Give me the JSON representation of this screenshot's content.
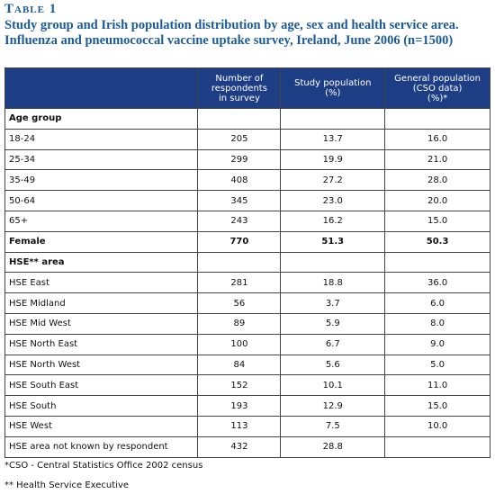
{
  "header": {
    "label": "Table 1",
    "title": "Study group and Irish population distribution by age, sex and health service area. Influenza and pneumococcal vaccine uptake survey, Ireland, June 2006 (n=1500)"
  },
  "table": {
    "columns": [
      "",
      "Number of\nrespondents\nin survey",
      "Study population\n(%)",
      "General population\n(CSO data)\n(%)*"
    ],
    "rows": [
      {
        "heading": true,
        "cells": [
          "Age group"
        ]
      },
      {
        "cells": [
          "18-24",
          "205",
          "13.7",
          "16.0"
        ]
      },
      {
        "cells": [
          "25-34",
          "299",
          "19.9",
          "21.0"
        ]
      },
      {
        "cells": [
          "35-49",
          "408",
          "27.2",
          "28.0"
        ]
      },
      {
        "cells": [
          "50-64",
          "345",
          "23.0",
          "20.0"
        ]
      },
      {
        "cells": [
          "65+",
          "243",
          "16.2",
          "15.0"
        ]
      },
      {
        "heading": true,
        "cells": [
          "Female",
          "770",
          "51.3",
          "50.3"
        ]
      },
      {
        "heading": true,
        "cells": [
          "HSE** area"
        ]
      },
      {
        "cells": [
          "HSE East",
          "281",
          "18.8",
          "36.0"
        ]
      },
      {
        "cells": [
          "HSE Midland",
          "56",
          "3.7",
          "6.0"
        ]
      },
      {
        "cells": [
          "HSE Mid West",
          "89",
          "5.9",
          "8.0"
        ]
      },
      {
        "cells": [
          "HSE North East",
          "100",
          "6.7",
          "9.0"
        ]
      },
      {
        "cells": [
          "HSE North West",
          "84",
          "5.6",
          "5.0"
        ]
      },
      {
        "cells": [
          "HSE South East",
          "152",
          "10.1",
          "11.0"
        ]
      },
      {
        "cells": [
          "HSE South",
          "193",
          "12.9",
          "15.0"
        ]
      },
      {
        "cells": [
          "HSE West",
          "113",
          "7.5",
          "10.0"
        ]
      },
      {
        "cells": [
          "HSE area not known by respondent",
          "432",
          "28.8"
        ]
      }
    ]
  },
  "footnotes": [
    "*CSO - Central Statistics Office 2002 census",
    "** Health Service Executive"
  ]
}
